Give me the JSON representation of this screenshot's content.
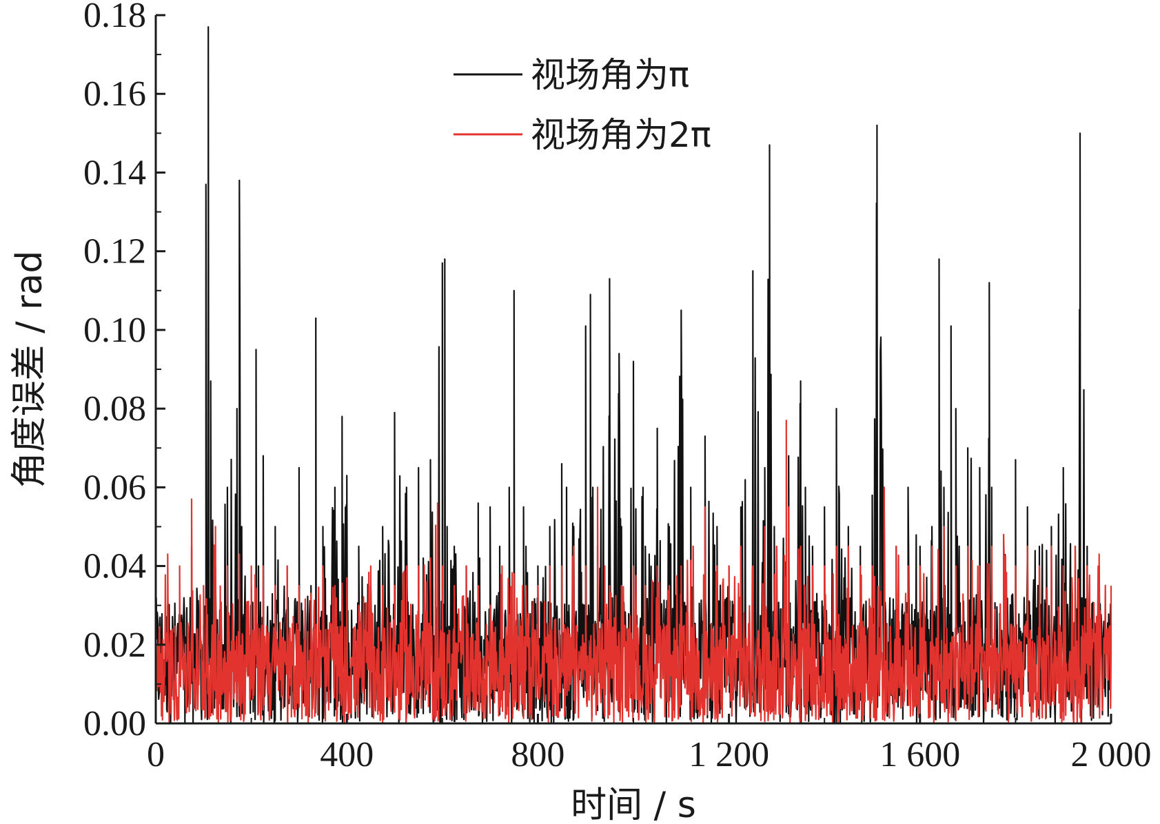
{
  "chart_data": {
    "type": "line",
    "xlabel": "时间 / s",
    "ylabel": "角度误差 / rad",
    "xlim": [
      0,
      2000
    ],
    "ylim": [
      0,
      0.18
    ],
    "x_ticks": [
      0,
      400,
      800,
      1200,
      1600,
      2000
    ],
    "x_tick_labels": [
      "0",
      "400",
      "800",
      "1 200",
      "1 600",
      "2 000"
    ],
    "y_ticks": [
      0,
      0.02,
      0.04,
      0.06,
      0.08,
      0.1,
      0.12,
      0.14,
      0.16,
      0.18
    ],
    "y_tick_labels": [
      "0.00",
      "0.02",
      "0.04",
      "0.06",
      "0.08",
      "0.10",
      "0.12",
      "0.14",
      "0.16",
      "0.18"
    ],
    "grid": false,
    "legend": "top-center",
    "series": [
      {
        "name": "视场角为π",
        "color": "#111111",
        "x": [
          0,
          25,
          50,
          75,
          100,
          105,
          110,
          115,
          125,
          150,
          170,
          175,
          180,
          200,
          210,
          215,
          225,
          250,
          275,
          300,
          325,
          335,
          350,
          375,
          390,
          400,
          425,
          450,
          475,
          500,
          525,
          550,
          560,
          575,
          600,
          605,
          610,
          625,
          650,
          675,
          700,
          720,
          740,
          750,
          770,
          775,
          800,
          825,
          850,
          860,
          875,
          900,
          910,
          915,
          925,
          950,
          970,
          975,
          1000,
          1020,
          1025,
          1050,
          1075,
          1100,
          1120,
          1125,
          1150,
          1175,
          1200,
          1225,
          1250,
          1275,
          1285,
          1295,
          1300,
          1325,
          1350,
          1360,
          1375,
          1400,
          1425,
          1450,
          1475,
          1500,
          1510,
          1525,
          1550,
          1575,
          1600,
          1625,
          1640,
          1650,
          1665,
          1675,
          1700,
          1725,
          1745,
          1750,
          1775,
          1800,
          1825,
          1850,
          1875,
          1900,
          1925,
          1935,
          1950,
          1975,
          2000
        ],
        "y": [
          0.015,
          0.03,
          0.02,
          0.045,
          0.025,
          0.137,
          0.177,
          0.087,
          0.04,
          0.06,
          0.08,
          0.138,
          0.05,
          0.035,
          0.095,
          0.04,
          0.068,
          0.05,
          0.04,
          0.065,
          0.035,
          0.103,
          0.05,
          0.06,
          0.078,
          0.063,
          0.045,
          0.035,
          0.05,
          0.079,
          0.06,
          0.065,
          0.042,
          0.067,
          0.117,
          0.118,
          0.05,
          0.045,
          0.04,
          0.056,
          0.055,
          0.045,
          0.06,
          0.11,
          0.055,
          0.045,
          0.04,
          0.05,
          0.066,
          0.06,
          0.05,
          0.101,
          0.109,
          0.06,
          0.045,
          0.113,
          0.094,
          0.05,
          0.092,
          0.06,
          0.045,
          0.075,
          0.05,
          0.105,
          0.06,
          0.045,
          0.073,
          0.05,
          0.04,
          0.055,
          0.115,
          0.065,
          0.147,
          0.05,
          0.045,
          0.068,
          0.087,
          0.06,
          0.045,
          0.055,
          0.08,
          0.05,
          0.045,
          0.058,
          0.152,
          0.06,
          0.045,
          0.06,
          0.045,
          0.05,
          0.118,
          0.06,
          0.101,
          0.08,
          0.07,
          0.065,
          0.112,
          0.06,
          0.045,
          0.067,
          0.055,
          0.045,
          0.05,
          0.065,
          0.045,
          0.15,
          0.045,
          0.04,
          0.03
        ],
        "noise_floor": 0.02
      },
      {
        "name": "视场角为2π",
        "color": "#e2332e",
        "x": [
          0,
          25,
          50,
          75,
          100,
          125,
          150,
          175,
          200,
          225,
          250,
          275,
          300,
          325,
          350,
          375,
          400,
          425,
          450,
          475,
          500,
          525,
          550,
          575,
          590,
          600,
          625,
          650,
          675,
          700,
          725,
          750,
          775,
          800,
          825,
          850,
          875,
          900,
          925,
          940,
          950,
          975,
          1000,
          1025,
          1050,
          1075,
          1100,
          1125,
          1150,
          1175,
          1200,
          1225,
          1250,
          1275,
          1300,
          1320,
          1325,
          1350,
          1375,
          1400,
          1425,
          1450,
          1475,
          1500,
          1525,
          1550,
          1575,
          1600,
          1625,
          1650,
          1675,
          1700,
          1725,
          1750,
          1775,
          1800,
          1825,
          1850,
          1875,
          1900,
          1925,
          1950,
          1975,
          2000
        ],
        "y": [
          0.02,
          0.043,
          0.04,
          0.057,
          0.035,
          0.05,
          0.04,
          0.043,
          0.04,
          0.04,
          0.035,
          0.04,
          0.035,
          0.033,
          0.04,
          0.035,
          0.037,
          0.03,
          0.04,
          0.035,
          0.035,
          0.04,
          0.04,
          0.042,
          0.056,
          0.04,
          0.035,
          0.04,
          0.035,
          0.03,
          0.04,
          0.038,
          0.035,
          0.035,
          0.04,
          0.04,
          0.045,
          0.04,
          0.06,
          0.04,
          0.035,
          0.035,
          0.04,
          0.035,
          0.04,
          0.035,
          0.04,
          0.045,
          0.055,
          0.04,
          0.04,
          0.045,
          0.04,
          0.05,
          0.045,
          0.077,
          0.055,
          0.045,
          0.04,
          0.04,
          0.045,
          0.045,
          0.04,
          0.04,
          0.06,
          0.045,
          0.04,
          0.04,
          0.045,
          0.05,
          0.04,
          0.045,
          0.04,
          0.045,
          0.048,
          0.04,
          0.045,
          0.04,
          0.045,
          0.04,
          0.045,
          0.04,
          0.043,
          0.035
        ],
        "noise_floor": 0.016
      }
    ]
  }
}
